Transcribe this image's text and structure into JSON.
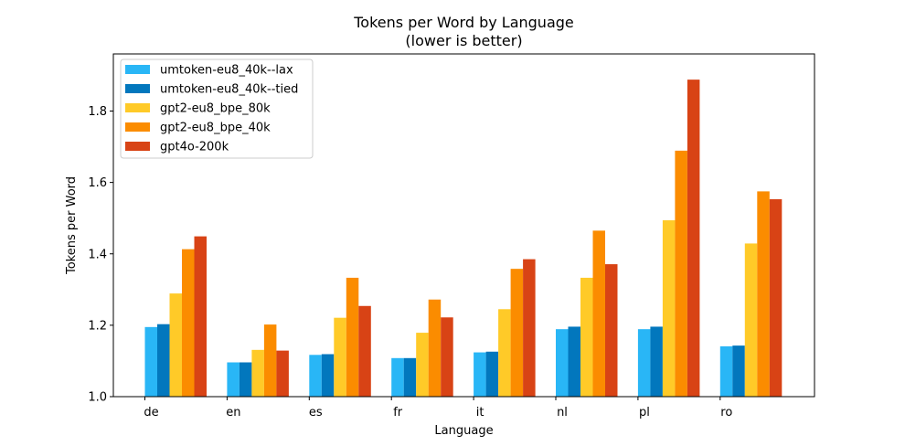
{
  "chart_data": {
    "type": "bar",
    "title": "Tokens per Word by Language",
    "subtitle": "(lower is better)",
    "xlabel": "Language",
    "ylabel": "Tokens per Word",
    "ylim": [
      1.0,
      1.96
    ],
    "yticks": [
      "1.0",
      "1.2",
      "1.4",
      "1.6",
      "1.8"
    ],
    "grid": false,
    "legend_position": "top-left",
    "categories": [
      "de",
      "en",
      "es",
      "fr",
      "it",
      "nl",
      "pl",
      "ro"
    ],
    "series": [
      {
        "name": "umtoken-eu8_40k--lax",
        "color": "#29b6f6",
        "values": [
          1.195,
          1.096,
          1.117,
          1.108,
          1.124,
          1.189,
          1.189,
          1.141
        ]
      },
      {
        "name": "umtoken-eu8_40k--tied",
        "color": "#0277bd",
        "values": [
          1.203,
          1.096,
          1.119,
          1.108,
          1.126,
          1.196,
          1.196,
          1.143
        ]
      },
      {
        "name": "gpt2-eu8_bpe_80k",
        "color": "#ffca28",
        "values": [
          1.289,
          1.131,
          1.221,
          1.179,
          1.245,
          1.333,
          1.494,
          1.429
        ]
      },
      {
        "name": "gpt2-eu8_bpe_40k",
        "color": "#fb8c00",
        "values": [
          1.413,
          1.202,
          1.333,
          1.272,
          1.358,
          1.465,
          1.689,
          1.575
        ]
      },
      {
        "name": "gpt4o-200k",
        "color": "#d84315",
        "values": [
          1.449,
          1.129,
          1.254,
          1.222,
          1.385,
          1.371,
          1.888,
          1.553
        ]
      }
    ]
  }
}
